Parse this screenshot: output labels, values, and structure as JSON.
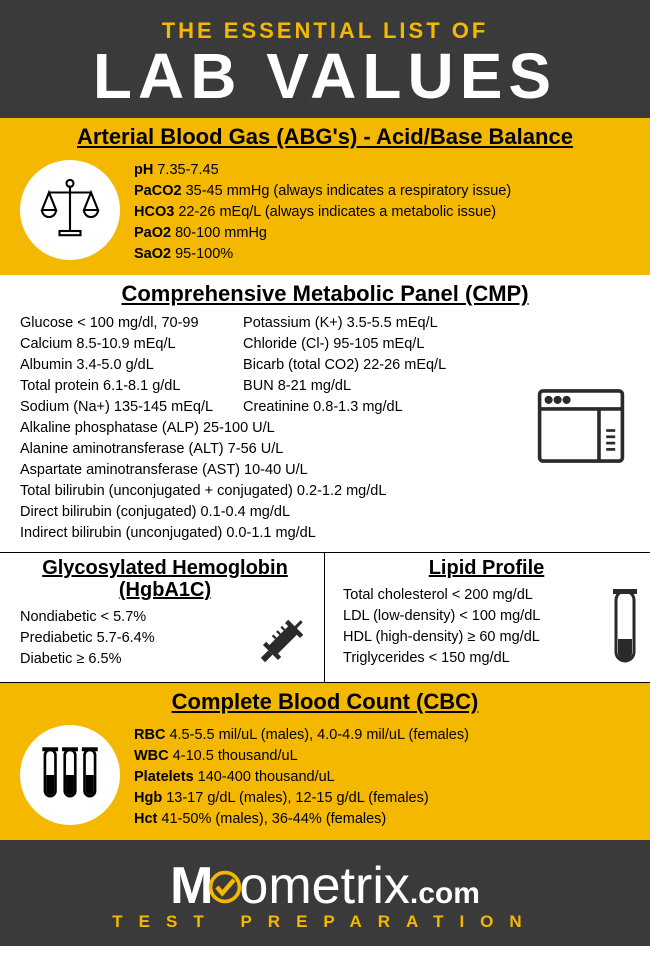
{
  "colors": {
    "yellow": "#f5b800",
    "dark": "#3a3a3a",
    "white": "#ffffff",
    "black": "#000000"
  },
  "header": {
    "sub": "THE ESSENTIAL LIST OF",
    "main": "LAB VALUES"
  },
  "abg": {
    "title": "Arterial Blood Gas (ABG's) - Acid/Base Balance",
    "items": [
      {
        "lbl": "pH",
        "val": "7.35-7.45"
      },
      {
        "lbl": "PaCO2",
        "val": "35-45 mmHg (always indicates a respiratory issue)"
      },
      {
        "lbl": "HCO3",
        "val": "22-26 mEq/L (always indicates a metabolic issue)"
      },
      {
        "lbl": "PaO2",
        "val": "80-100 mmHg"
      },
      {
        "lbl": "SaO2",
        "val": "95-100%"
      }
    ]
  },
  "cmp": {
    "title": "Comprehensive Metabolic Panel (CMP)",
    "left": [
      {
        "lbl": "Glucose",
        "val": "< 100 mg/dl, 70-99"
      },
      {
        "lbl": "Calcium",
        "val": "8.5-10.9 mEq/L"
      },
      {
        "lbl": "Albumin",
        "val": "3.4-5.0 g/dL"
      },
      {
        "lbl": "Total protein",
        "val": "6.1-8.1 g/dL"
      },
      {
        "lbl": "Sodium (Na+)",
        "val": "135-145 mEq/L"
      }
    ],
    "right": [
      {
        "lbl": "Potassium (K+)",
        "val": "3.5-5.5 mEq/L"
      },
      {
        "lbl": "Chloride (Cl-)",
        "val": "95-105 mEq/L"
      },
      {
        "lbl": "Bicarb (total CO2)",
        "val": "22-26 mEq/L"
      },
      {
        "lbl": "BUN",
        "val": "8-21 mg/dL"
      },
      {
        "lbl": "Creatinine",
        "val": "0.8-1.3 mg/dL"
      }
    ],
    "full": [
      {
        "lbl": "Alkaline phosphatase (ALP)",
        "val": "25-100 U/L"
      },
      {
        "lbl": "Alanine aminotransferase (ALT)",
        "val": " 7-56 U/L"
      },
      {
        "lbl": "Aspartate aminotransferase (AST)",
        "val": " 10-40 U/L"
      },
      {
        "lbl": "Total bilirubin (unconjugated + conjugated)",
        "val": "0.2-1.2 mg/dL"
      },
      {
        "lbl": "Direct bilirubin (conjugated)",
        "val": "0.1-0.4 mg/dL"
      },
      {
        "lbl": "Indirect bilirubin (unconjugated)",
        "val": "0.0-1.1 mg/dL"
      }
    ]
  },
  "hgba1c": {
    "title": "Glycosylated Hemoglobin (HgbA1C)",
    "items": [
      {
        "lbl": "Nondiabetic",
        "val": "< 5.7%"
      },
      {
        "lbl": "Prediabetic",
        "val": "5.7-6.4%"
      },
      {
        "lbl": "Diabetic",
        "val": "≥ 6.5%"
      }
    ]
  },
  "lipid": {
    "title": "Lipid Profile",
    "items": [
      {
        "lbl": "Total cholesterol",
        "val": "< 200 mg/dL"
      },
      {
        "lbl": "LDL (low-density)",
        "val": "< 100 mg/dL"
      },
      {
        "lbl": "HDL (high-density)",
        "val": "≥ 60 mg/dL"
      },
      {
        "lbl": "Triglycerides",
        "val": "< 150 mg/dL"
      }
    ]
  },
  "cbc": {
    "title": "Complete Blood Count (CBC)",
    "items": [
      {
        "lbl": "RBC",
        "val": "4.5-5.5 mil/uL (males), 4.0-4.9 mil/uL (females)"
      },
      {
        "lbl": "WBC",
        "val": "4-10.5 thousand/uL"
      },
      {
        "lbl": "Platelets",
        "val": "140-400 thousand/uL"
      },
      {
        "lbl": "Hgb",
        "val": "13-17 g/dL (males), 12-15 g/dL (females)"
      },
      {
        "lbl": "Hct",
        "val": "41-50% (males), 36-44% (females)"
      }
    ]
  },
  "footer": {
    "brand_bold": "M",
    "brand_thin": "ometrix",
    "domain": ".com",
    "sub": "TEST PREPARATION"
  }
}
